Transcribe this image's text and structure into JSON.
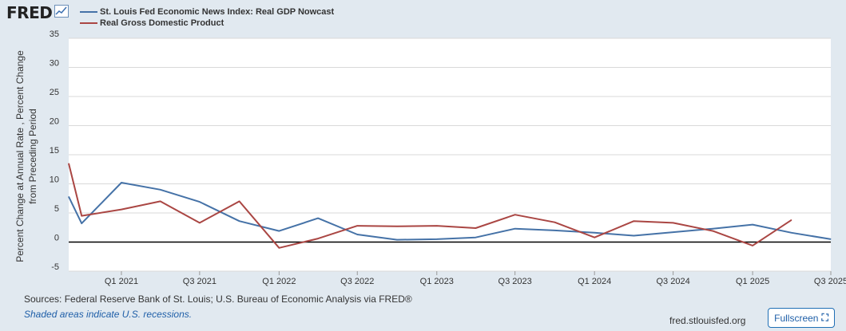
{
  "brand": {
    "logo_text": "FRED"
  },
  "chart_data": {
    "type": "line",
    "title": "",
    "xlabel": "",
    "ylabel": "Percent Change at Annual Rate , Percent Change from Preceding Period",
    "ylim": [
      -5,
      35
    ],
    "y_ticks": [
      "35",
      "30",
      "25",
      "20",
      "15",
      "10",
      "5",
      "0",
      "-5"
    ],
    "y_tick_values": [
      35,
      30,
      25,
      20,
      15,
      10,
      5,
      0,
      -5
    ],
    "x_tick_labels": [
      "Q1 2021",
      "Q3 2021",
      "Q1 2022",
      "Q3 2022",
      "Q1 2023",
      "Q3 2023",
      "Q1 2024",
      "Q3 2024",
      "Q1 2025",
      "Q3 2025"
    ],
    "x_tick_values": [
      "2021-01-01",
      "2021-07-01",
      "2022-01-01",
      "2022-07-01",
      "2023-01-01",
      "2023-07-01",
      "2024-01-01",
      "2024-07-01",
      "2025-01-01",
      "2025-07-01"
    ],
    "xlim": [
      "2020-09-01",
      "2025-07-01"
    ],
    "grid": true,
    "legend_position": "top-left",
    "series": [
      {
        "name": "St. Louis Fed Economic News Index: Real GDP Nowcast",
        "color": "#4572a7",
        "x": [
          "2020-09-01",
          "2020-10-01",
          "2021-01-01",
          "2021-04-01",
          "2021-07-01",
          "2021-10-01",
          "2022-01-01",
          "2022-04-01",
          "2022-07-01",
          "2022-10-01",
          "2023-01-01",
          "2023-04-01",
          "2023-07-01",
          "2023-10-01",
          "2024-01-01",
          "2024-04-01",
          "2024-07-01",
          "2024-10-01",
          "2025-01-01",
          "2025-04-01",
          "2025-07-01"
        ],
        "values": [
          7.8,
          3.2,
          10.2,
          9.0,
          6.9,
          3.6,
          1.9,
          4.1,
          1.3,
          0.4,
          0.5,
          0.8,
          2.3,
          2.0,
          1.6,
          1.1,
          1.7,
          2.3,
          3.0,
          1.6,
          0.5
        ]
      },
      {
        "name": "Real Gross Domestic Product",
        "color": "#aa4643",
        "x": [
          "2020-09-01",
          "2020-10-01",
          "2021-01-01",
          "2021-04-01",
          "2021-07-01",
          "2021-10-01",
          "2022-01-01",
          "2022-04-01",
          "2022-07-01",
          "2022-10-01",
          "2023-01-01",
          "2023-04-01",
          "2023-07-01",
          "2023-10-01",
          "2024-01-01",
          "2024-04-01",
          "2024-07-01",
          "2024-10-01",
          "2025-01-01",
          "2025-04-01"
        ],
        "values": [
          13.5,
          4.5,
          5.6,
          7.0,
          3.3,
          7.0,
          -1.0,
          0.6,
          2.8,
          2.7,
          2.8,
          2.4,
          4.7,
          3.4,
          0.8,
          3.6,
          3.3,
          1.9,
          -0.6,
          3.8
        ]
      }
    ]
  },
  "footer": {
    "sources": "Sources: Federal Reserve Bank of St. Louis; U.S. Bureau of Economic Analysis via FRED®",
    "note": "Shaded areas indicate U.S. recessions.",
    "site": "fred.stlouisfed.org",
    "fullscreen_label": "Fullscreen"
  }
}
